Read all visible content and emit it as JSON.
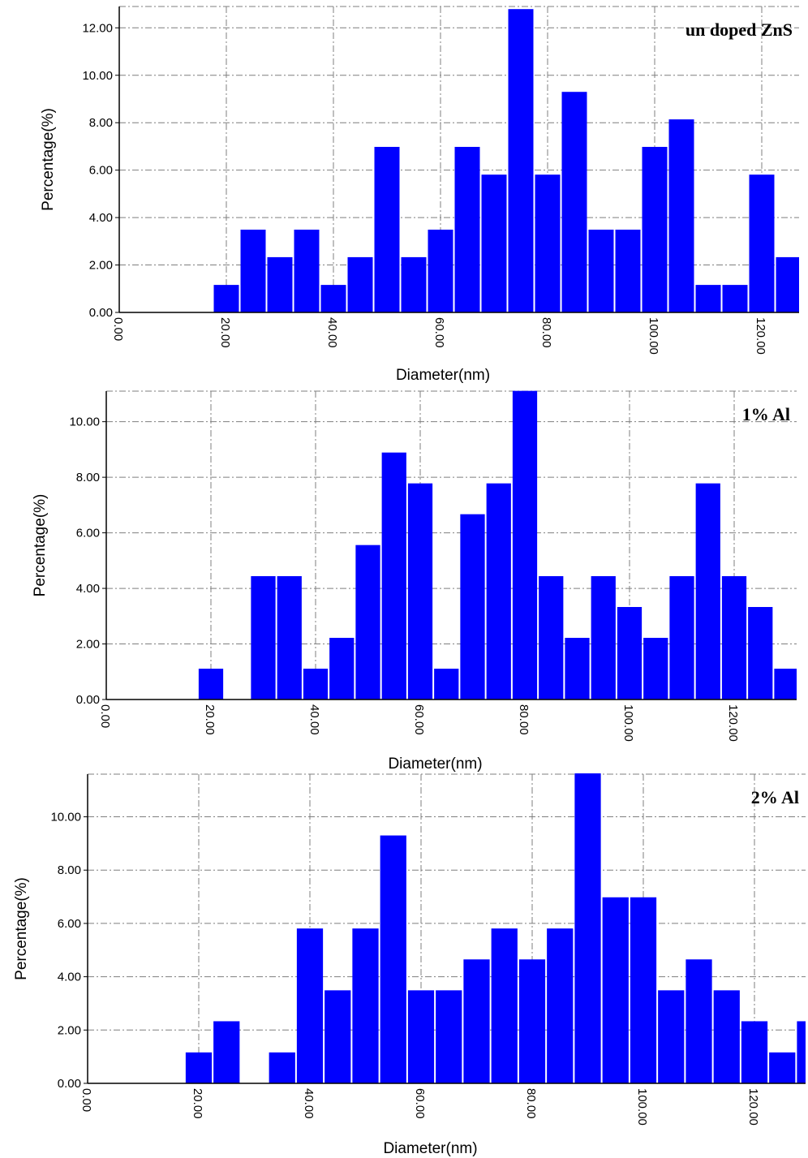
{
  "colors": {
    "bar": "#0000ff",
    "grid": "#7f7f7f",
    "axis": "#000000"
  },
  "chart_data": [
    {
      "type": "bar",
      "title": "un doped ZnS",
      "xlabel": "Diameter(nm)",
      "ylabel": "Percentage(%)",
      "x_tick_labels": [
        "0.00",
        "20.00",
        "40.00",
        "60.00",
        "80.00",
        "100.00",
        "120.00"
      ],
      "y_tick_labels": [
        "0.00",
        "2.00",
        "4.00",
        "6.00",
        "8.00",
        "10.00",
        "12.00"
      ],
      "xlim": [
        0,
        125
      ],
      "ylim": [
        0,
        12.9
      ],
      "grid": true,
      "bin_width_nm": 5,
      "bin_centers_nm": [
        20,
        25,
        30,
        35,
        40,
        45,
        50,
        55,
        60,
        65,
        70,
        75,
        80,
        85,
        90,
        95,
        100,
        105,
        110,
        115,
        120,
        125
      ],
      "values": [
        1.16,
        3.49,
        2.33,
        3.49,
        1.16,
        2.33,
        6.98,
        2.33,
        3.49,
        6.98,
        5.81,
        12.79,
        5.81,
        9.3,
        3.49,
        3.49,
        6.98,
        8.14,
        1.16,
        1.16,
        5.81,
        2.33
      ]
    },
    {
      "type": "bar",
      "title": "1% Al",
      "xlabel": "Diameter(nm)",
      "ylabel": "Percentage(%)",
      "x_tick_labels": [
        "0.00",
        "20.00",
        "40.00",
        "60.00",
        "80.00",
        "100.00",
        "120.00"
      ],
      "y_tick_labels": [
        "0.00",
        "2.00",
        "4.00",
        "6.00",
        "8.00",
        "10.00"
      ],
      "xlim": [
        0,
        130
      ],
      "ylim": [
        0,
        11.1
      ],
      "grid": true,
      "bin_width_nm": 5,
      "bin_centers_nm": [
        20,
        25,
        30,
        35,
        40,
        45,
        50,
        55,
        60,
        65,
        70,
        75,
        80,
        85,
        90,
        95,
        100,
        105,
        110,
        115,
        120,
        125,
        130
      ],
      "values": [
        1.11,
        0,
        4.44,
        4.44,
        1.11,
        2.22,
        5.56,
        8.89,
        7.78,
        1.11,
        6.67,
        7.78,
        11.11,
        4.44,
        2.22,
        4.44,
        3.33,
        2.22,
        4.44,
        7.78,
        4.44,
        3.33,
        1.11
      ]
    },
    {
      "type": "bar",
      "title": "2% Al",
      "xlabel": "Diameter(nm)",
      "ylabel": "Percentage(%)",
      "x_tick_labels": [
        "0.00",
        "20.00",
        "40.00",
        "60.00",
        "80.00",
        "100.00",
        "120.00"
      ],
      "y_tick_labels": [
        "0.00",
        "2.00",
        "4.00",
        "6.00",
        "8.00",
        "10.00"
      ],
      "xlim": [
        0,
        128
      ],
      "ylim": [
        0,
        11.6
      ],
      "grid": true,
      "bin_width_nm": 5,
      "bin_centers_nm": [
        20,
        25,
        30,
        35,
        40,
        45,
        50,
        55,
        60,
        65,
        70,
        75,
        80,
        85,
        90,
        95,
        100,
        105,
        110,
        115,
        120,
        125,
        130
      ],
      "values": [
        1.16,
        2.33,
        0,
        1.16,
        5.81,
        3.49,
        5.81,
        9.3,
        3.49,
        3.49,
        4.65,
        5.81,
        4.65,
        5.81,
        11.63,
        6.98,
        6.98,
        3.49,
        4.65,
        3.49,
        2.33,
        1.16,
        2.33
      ]
    }
  ]
}
